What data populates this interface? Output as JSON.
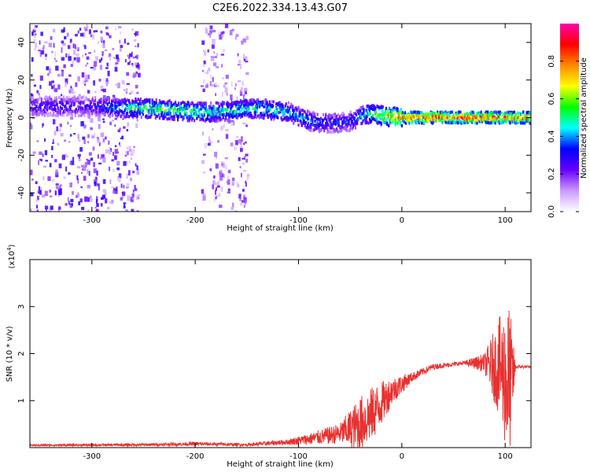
{
  "title": "C2E6.2022.334.13.43.G07",
  "chart_data": [
    {
      "type": "heatmap",
      "xlabel": "Height of straight line (km)",
      "ylabel": "Frequency (Hz)",
      "xlim": [
        -360,
        125
      ],
      "ylim": [
        -50,
        50
      ],
      "xticks": [
        -300,
        -200,
        -100,
        0,
        100
      ],
      "yticks": [
        -40,
        -20,
        0,
        20,
        40
      ],
      "colorbar": {
        "label": "Normalized spectral amplitude",
        "range": [
          0,
          1
        ],
        "ticks": [
          "0.0",
          "0.2",
          "0.4",
          "0.6",
          "0.8"
        ],
        "tick_values": [
          0.0,
          0.2,
          0.4,
          0.6,
          0.8
        ],
        "colors": [
          "#ffffff",
          "#cc99ff",
          "#6600ff",
          "#0000ff",
          "#00ffff",
          "#00ff00",
          "#ffff00",
          "#ff8800",
          "#ff0000",
          "#ff00aa"
        ]
      },
      "ridge": [
        {
          "x": -350,
          "y": 6,
          "a": 0.3
        },
        {
          "x": -300,
          "y": 6,
          "a": 0.3
        },
        {
          "x": -270,
          "y": 5,
          "a": 0.45
        },
        {
          "x": -250,
          "y": 5,
          "a": 0.55
        },
        {
          "x": -200,
          "y": 3,
          "a": 0.55
        },
        {
          "x": -180,
          "y": 3,
          "a": 0.5
        },
        {
          "x": -140,
          "y": 5,
          "a": 0.5
        },
        {
          "x": -110,
          "y": 3,
          "a": 0.45
        },
        {
          "x": -90,
          "y": -2,
          "a": 0.4
        },
        {
          "x": -70,
          "y": -3,
          "a": 0.35
        },
        {
          "x": -50,
          "y": -2,
          "a": 0.35
        },
        {
          "x": -35,
          "y": 2,
          "a": 0.5
        },
        {
          "x": -20,
          "y": 1,
          "a": 0.7
        },
        {
          "x": 0,
          "y": 0,
          "a": 0.85
        },
        {
          "x": 50,
          "y": 0,
          "a": 0.9
        },
        {
          "x": 100,
          "y": 0,
          "a": 0.85
        },
        {
          "x": 120,
          "y": 0,
          "a": 0.85
        }
      ],
      "noise_bands": [
        {
          "x0": -360,
          "x1": -255,
          "level": 0.28
        },
        {
          "x0": -195,
          "x1": -150,
          "level": 0.22
        }
      ]
    },
    {
      "type": "line",
      "xlabel": "Height of straight line (km)",
      "ylabel": "SNR (10 * v/v)",
      "exponent_label": "(x10",
      "exponent_power": "4",
      "exponent_close": ")",
      "xlim": [
        -360,
        125
      ],
      "ylim": [
        0,
        4
      ],
      "xticks": [
        -300,
        -200,
        -100,
        0,
        100
      ],
      "yticks": [
        1,
        2,
        3
      ],
      "color": "#e8312f",
      "envelope": [
        {
          "x": -360,
          "y": 0.05,
          "amp": 0.02
        },
        {
          "x": -250,
          "y": 0.06,
          "amp": 0.03
        },
        {
          "x": -200,
          "y": 0.08,
          "amp": 0.04
        },
        {
          "x": -150,
          "y": 0.06,
          "amp": 0.03
        },
        {
          "x": -110,
          "y": 0.12,
          "amp": 0.06
        },
        {
          "x": -90,
          "y": 0.18,
          "amp": 0.12
        },
        {
          "x": -60,
          "y": 0.3,
          "amp": 0.22
        },
        {
          "x": -40,
          "y": 0.5,
          "amp": 0.6
        },
        {
          "x": -25,
          "y": 0.8,
          "amp": 0.55
        },
        {
          "x": -10,
          "y": 1.2,
          "amp": 0.3
        },
        {
          "x": 10,
          "y": 1.5,
          "amp": 0.1
        },
        {
          "x": 30,
          "y": 1.72,
          "amp": 0.06
        },
        {
          "x": 60,
          "y": 1.8,
          "amp": 0.04
        },
        {
          "x": 80,
          "y": 1.8,
          "amp": 0.2
        },
        {
          "x": 95,
          "y": 1.7,
          "amp": 1.1
        },
        {
          "x": 104,
          "y": 1.3,
          "amp": 1.8
        },
        {
          "x": 110,
          "y": 1.72,
          "amp": 0.05
        },
        {
          "x": 125,
          "y": 1.72,
          "amp": 0.02
        }
      ]
    }
  ]
}
